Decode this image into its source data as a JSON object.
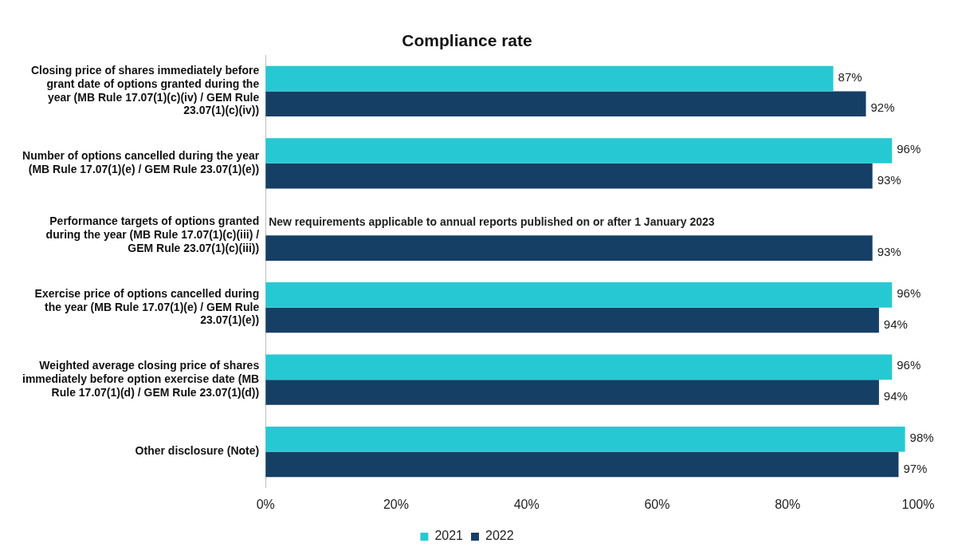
{
  "chart_data": {
    "type": "bar",
    "orientation": "horizontal",
    "title": "Compliance rate",
    "categories": [
      "Closing price of shares immediately before grant date of options granted during the year (MB Rule 17.07(1)(c)(iv) / GEM Rule 23.07(1)(c)(iv))",
      "Number of options cancelled during the year (MB Rule 17.07(1)(e) / GEM Rule 23.07(1)(e))",
      "Performance targets of options granted during the year (MB Rule 17.07(1)(c)(iii) / GEM Rule 23.07(1)(c)(iii))",
      "Exercise price of options cancelled during the year (MB Rule 17.07(1)(e) / GEM Rule 23.07(1)(e))",
      "Weighted average closing price of shares immediately before option exercise date (MB Rule 17.07(1)(d) / GEM Rule 23.07(1)(d))",
      "Other disclosure (Note)"
    ],
    "series": [
      {
        "name": "2021",
        "color": "#26c9d3",
        "values": [
          87,
          96,
          null,
          96,
          96,
          98
        ],
        "value_labels": [
          "87%",
          "96%",
          null,
          "96%",
          "96%",
          "98%"
        ]
      },
      {
        "name": "2022",
        "color": "#163f66",
        "values": [
          92,
          93,
          93,
          94,
          94,
          97
        ],
        "value_labels": [
          "92%",
          "93%",
          "93%",
          "94%",
          "94%",
          "97%"
        ]
      }
    ],
    "xlim": [
      0,
      100
    ],
    "xticks": [
      {
        "value": 0,
        "label": "0%"
      },
      {
        "value": 20,
        "label": "20%"
      },
      {
        "value": 40,
        "label": "40%"
      },
      {
        "value": 60,
        "label": "60%"
      },
      {
        "value": 80,
        "label": "80%"
      },
      {
        "value": 100,
        "label": "100%"
      }
    ],
    "annotations": [
      {
        "text": "New requirements applicable to annual reports published on or after 1 January 2023",
        "y": "Performance targets of options granted during the year (MB Rule 17.07(1)(c)(iii) / GEM Rule 23.07(1)(c)(iii))"
      }
    ],
    "grid": false,
    "legend": "bottom"
  }
}
